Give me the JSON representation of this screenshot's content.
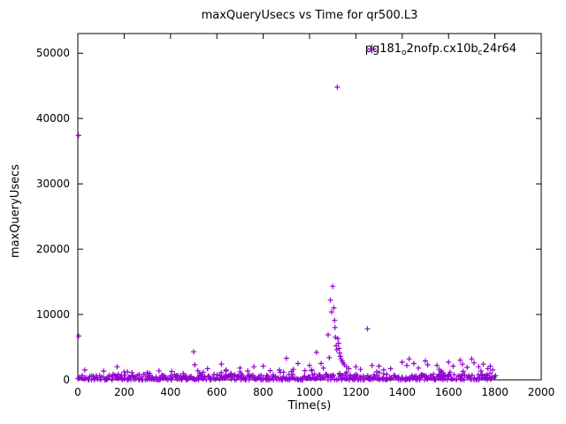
{
  "chart_data": {
    "type": "scatter",
    "title": "maxQueryUsecs vs Time for qr500.L3",
    "xlabel": "Time(s)",
    "ylabel": "maxQueryUsecs",
    "xlim": [
      0,
      2000
    ],
    "ylim": [
      0,
      53000
    ],
    "xticks": [
      0,
      200,
      400,
      600,
      800,
      1000,
      1200,
      1400,
      1600,
      1800,
      2000
    ],
    "yticks": [
      0,
      10000,
      20000,
      30000,
      40000,
      50000
    ],
    "grid": false,
    "marker": "plus",
    "marker_color": "#9400d3",
    "axis_color": "#000000",
    "legend": {
      "position": "top-right-inside",
      "label_plain": "pg181_o2nofp.cx10b_c24r64",
      "label_parts": [
        {
          "text": "pg181"
        },
        {
          "text": "o",
          "sub": true
        },
        {
          "text": "2nofp.cx10b"
        },
        {
          "text": "c",
          "sub": true
        },
        {
          "text": "24r64"
        }
      ]
    },
    "outlier_points": [
      [
        3,
        37400
      ],
      [
        4,
        6700
      ],
      [
        30,
        1500
      ],
      [
        170,
        2000
      ],
      [
        200,
        1200
      ],
      [
        300,
        1100
      ],
      [
        310,
        1000
      ],
      [
        500,
        4300
      ],
      [
        505,
        2300
      ],
      [
        560,
        1700
      ],
      [
        620,
        2400
      ],
      [
        640,
        1500
      ],
      [
        700,
        1800
      ],
      [
        760,
        2000
      ],
      [
        800,
        2100
      ],
      [
        830,
        1400
      ],
      [
        870,
        1500
      ],
      [
        900,
        3300
      ],
      [
        930,
        1600
      ],
      [
        950,
        2500
      ],
      [
        980,
        1400
      ],
      [
        1000,
        2200
      ],
      [
        1010,
        1500
      ],
      [
        1030,
        4200
      ],
      [
        1050,
        2500
      ],
      [
        1060,
        1800
      ],
      [
        1080,
        6900
      ],
      [
        1085,
        3400
      ],
      [
        1090,
        12200
      ],
      [
        1095,
        10400
      ],
      [
        1100,
        14300
      ],
      [
        1105,
        11000
      ],
      [
        1108,
        9100
      ],
      [
        1110,
        8000
      ],
      [
        1112,
        6500
      ],
      [
        1115,
        5200
      ],
      [
        1118,
        4600
      ],
      [
        1120,
        44800
      ],
      [
        1122,
        6300
      ],
      [
        1125,
        5600
      ],
      [
        1128,
        4800
      ],
      [
        1130,
        4100
      ],
      [
        1133,
        3600
      ],
      [
        1136,
        3200
      ],
      [
        1140,
        2900
      ],
      [
        1145,
        2600
      ],
      [
        1150,
        2300
      ],
      [
        1160,
        2000
      ],
      [
        1170,
        1700
      ],
      [
        1200,
        2000
      ],
      [
        1220,
        1600
      ],
      [
        1250,
        7800
      ],
      [
        1270,
        2200
      ],
      [
        1300,
        2100
      ],
      [
        1320,
        1500
      ],
      [
        1350,
        1700
      ],
      [
        1400,
        2700
      ],
      [
        1420,
        2200
      ],
      [
        1430,
        3200
      ],
      [
        1450,
        2500
      ],
      [
        1470,
        1800
      ],
      [
        1500,
        2900
      ],
      [
        1510,
        2300
      ],
      [
        1550,
        2200
      ],
      [
        1560,
        1600
      ],
      [
        1600,
        2700
      ],
      [
        1620,
        2100
      ],
      [
        1650,
        3000
      ],
      [
        1660,
        2400
      ],
      [
        1680,
        1900
      ],
      [
        1700,
        3200
      ],
      [
        1710,
        2600
      ],
      [
        1730,
        2000
      ],
      [
        1750,
        2400
      ],
      [
        1770,
        1700
      ],
      [
        1780,
        2100
      ],
      [
        1790,
        1500
      ]
    ],
    "baseline_band": {
      "comment": "dense near-zero band of samples visible across the whole run",
      "x_min": 0,
      "x_max": 1800,
      "count": 430,
      "y_min": 10,
      "y_max": 850,
      "bias": 2,
      "extra_count": 70,
      "extra_y_min": 300,
      "extra_y_max": 1400,
      "seed": 42
    }
  }
}
